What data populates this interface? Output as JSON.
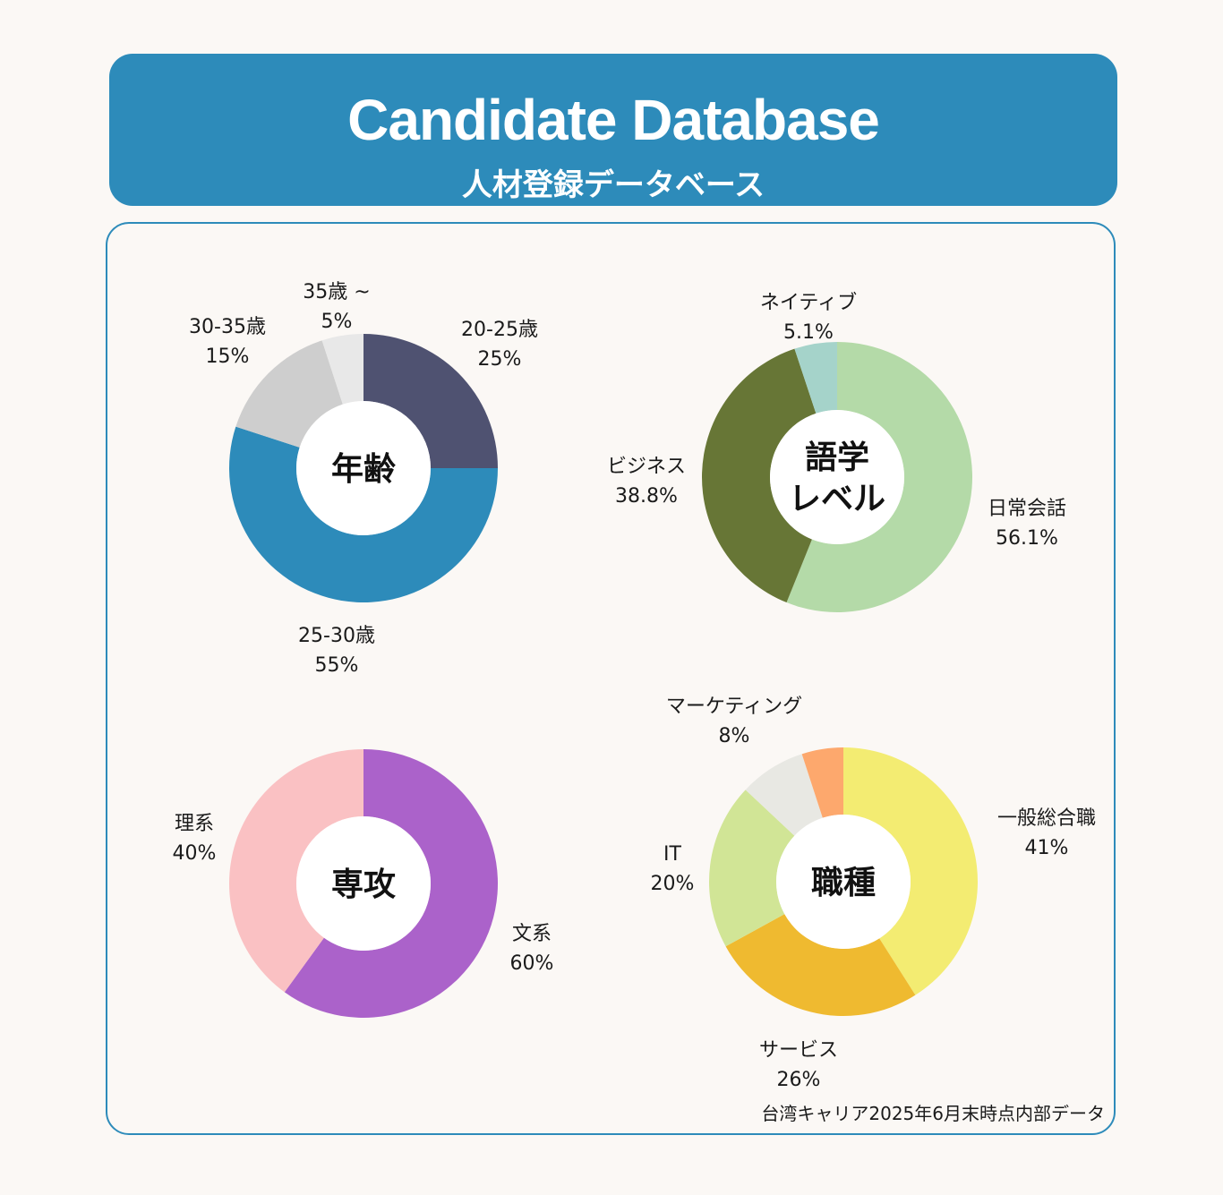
{
  "header": {
    "title": "Candidate Database",
    "subtitle": "人材登録データベース"
  },
  "footnote": "台湾キャリア2025年6月末時点内部データ",
  "chart_data": [
    {
      "type": "pie",
      "title": "年齢",
      "categories": [
        "20-25歳",
        "25-30歳",
        "30-35歳",
        "35歳 ~"
      ],
      "values": [
        25,
        55,
        15,
        5
      ],
      "value_labels": [
        "25%",
        "55%",
        "15%",
        "5%"
      ],
      "colors": [
        "#4f5271",
        "#2d8bba",
        "#cecece",
        "#e8e8e8"
      ]
    },
    {
      "type": "pie",
      "title": "語学\nレベル",
      "categories": [
        "日常会話",
        "ビジネス",
        "ネイティブ"
      ],
      "values": [
        56.1,
        38.8,
        5.1
      ],
      "value_labels": [
        "56.1%",
        "38.8%",
        "5.1%"
      ],
      "colors": [
        "#b4daa8",
        "#677636",
        "#a5d3ca"
      ]
    },
    {
      "type": "pie",
      "title": "専攻",
      "categories": [
        "文系",
        "理系"
      ],
      "values": [
        60,
        40
      ],
      "value_labels": [
        "60%",
        "40%"
      ],
      "colors": [
        "#ab62ca",
        "#fac1c3"
      ]
    },
    {
      "type": "pie",
      "title": "職種",
      "categories": [
        "一般総合職",
        "サービス",
        "IT",
        "マーケティング"
      ],
      "values": [
        41,
        26,
        20,
        8
      ],
      "value_labels": [
        "41%",
        "26%",
        "20%",
        "8%"
      ],
      "colors": [
        "#f3ec72",
        "#efba30",
        "#d1e596",
        "#e8e8e3",
        "#fda86d"
      ],
      "unlabeled_remainder_color": "#fda86d"
    }
  ]
}
